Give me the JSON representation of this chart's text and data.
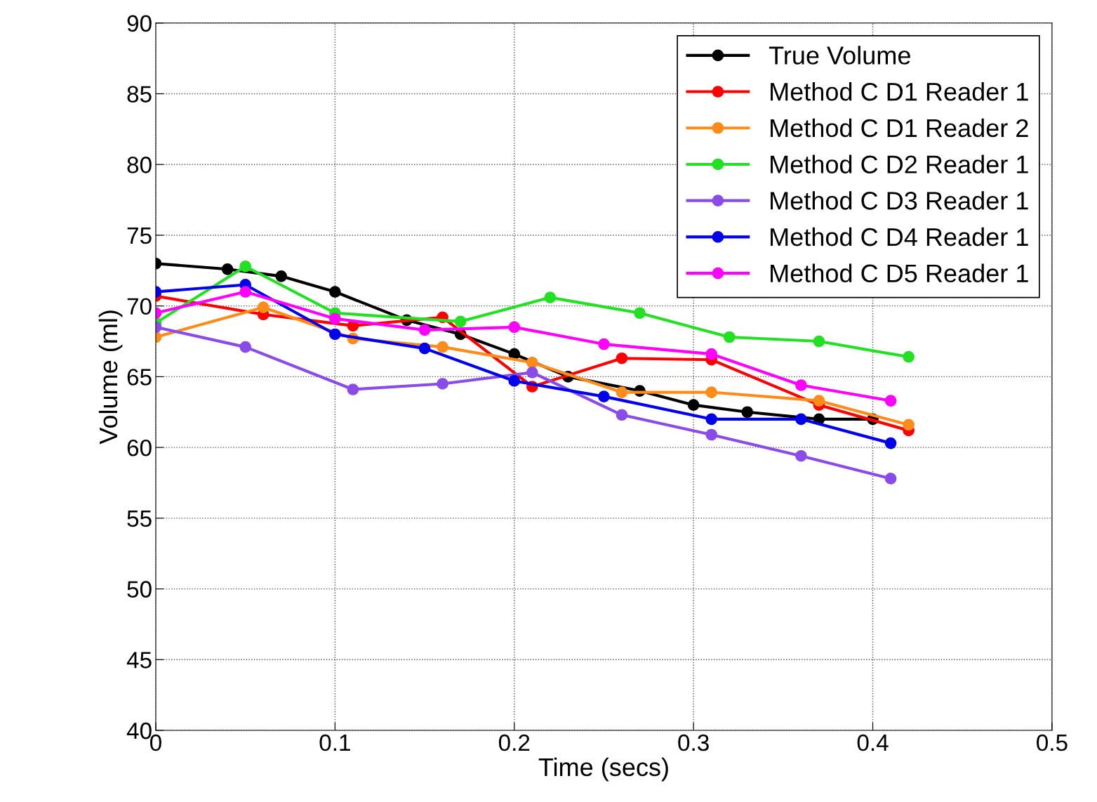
{
  "chart_data": {
    "type": "line",
    "xlabel": "Time (secs)",
    "ylabel": "Volume (ml)",
    "xlim": [
      0,
      0.5
    ],
    "xticks": [
      0,
      0.1,
      0.2,
      0.3,
      0.4,
      0.5
    ],
    "ylim": [
      40,
      90
    ],
    "yticks": [
      40,
      45,
      50,
      55,
      60,
      65,
      70,
      75,
      80,
      85,
      90
    ],
    "grid": true,
    "legend": "top right",
    "marker": "circle",
    "line_style": "solid",
    "series": [
      {
        "name": "True Volume",
        "color": "#000000",
        "x": [
          0,
          0.04,
          0.07,
          0.1,
          0.14,
          0.17,
          0.2,
          0.23,
          0.27,
          0.3,
          0.33,
          0.37,
          0.4
        ],
        "values": [
          73.0,
          72.6,
          72.1,
          71.0,
          69.0,
          68.0,
          66.6,
          65.0,
          64.0,
          63.0,
          62.5,
          62.0,
          62.0
        ]
      },
      {
        "name": "Method C D1 Reader 1",
        "color": "#ff0000",
        "x": [
          0,
          0.06,
          0.11,
          0.16,
          0.21,
          0.26,
          0.31,
          0.37,
          0.42
        ],
        "values": [
          70.7,
          69.4,
          68.6,
          69.2,
          64.3,
          66.3,
          66.2,
          63.0,
          61.2
        ]
      },
      {
        "name": "Method C D1 Reader 2",
        "color": "#ff8c1a",
        "x": [
          0,
          0.06,
          0.11,
          0.16,
          0.21,
          0.26,
          0.31,
          0.37,
          0.42
        ],
        "values": [
          67.8,
          69.9,
          67.7,
          67.1,
          66.0,
          63.9,
          63.9,
          63.3,
          61.6
        ]
      },
      {
        "name": "Method C D2 Reader 1",
        "color": "#22e022",
        "x": [
          0,
          0.05,
          0.1,
          0.17,
          0.22,
          0.27,
          0.32,
          0.37,
          0.42
        ],
        "values": [
          68.8,
          72.8,
          69.5,
          68.9,
          70.6,
          69.5,
          67.8,
          67.5,
          66.4
        ]
      },
      {
        "name": "Method C D3 Reader 1",
        "color": "#8a4ce8",
        "x": [
          0,
          0.05,
          0.11,
          0.16,
          0.21,
          0.26,
          0.31,
          0.36,
          0.41
        ],
        "values": [
          68.5,
          67.1,
          64.1,
          64.5,
          65.3,
          62.3,
          60.9,
          59.4,
          57.8
        ]
      },
      {
        "name": "Method C D4 Reader 1",
        "color": "#0000ee",
        "x": [
          0,
          0.05,
          0.1,
          0.15,
          0.2,
          0.25,
          0.31,
          0.36,
          0.41
        ],
        "values": [
          71.0,
          71.5,
          68.0,
          67.0,
          64.7,
          63.6,
          62.0,
          62.0,
          60.3
        ]
      },
      {
        "name": "Method C D5 Reader 1",
        "color": "#ff00ff",
        "x": [
          0,
          0.05,
          0.1,
          0.15,
          0.2,
          0.25,
          0.31,
          0.36,
          0.41
        ],
        "values": [
          69.5,
          71.0,
          69.1,
          68.3,
          68.5,
          67.3,
          66.6,
          64.4,
          63.3
        ]
      }
    ]
  }
}
